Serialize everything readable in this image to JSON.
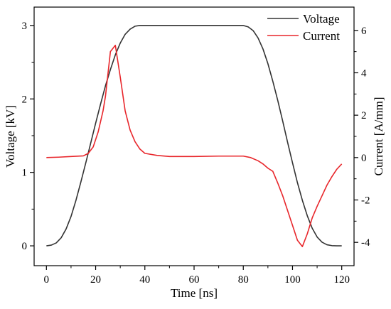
{
  "chart_data": {
    "type": "line",
    "xlabel": "Time [ns]",
    "ylabel_left": "Voltage [kV]",
    "ylabel_right": "Current [A/mm]",
    "xlim": [
      -5,
      125
    ],
    "ylim_left": [
      -0.27,
      3.25
    ],
    "ylim_right": [
      -5.1,
      7.1
    ],
    "x_ticks": [
      0,
      20,
      40,
      60,
      80,
      100,
      120
    ],
    "y_left_ticks": [
      0,
      1,
      2,
      3
    ],
    "y_right_ticks": [
      -4,
      -2,
      0,
      2,
      4,
      6
    ],
    "grid": false,
    "legend_position": "top-right",
    "series": [
      {
        "name": "Voltage",
        "axis": "left",
        "color": "#333333",
        "x": [
          0,
          2,
          4,
          6,
          8,
          10,
          12,
          14,
          16,
          18,
          20,
          22,
          24,
          26,
          28,
          30,
          32,
          34,
          36,
          38,
          40,
          45,
          50,
          60,
          70,
          80,
          82,
          84,
          86,
          88,
          90,
          92,
          94,
          96,
          98,
          100,
          102,
          104,
          106,
          108,
          110,
          112,
          114,
          116,
          118,
          120
        ],
        "y": [
          0.0,
          0.01,
          0.04,
          0.11,
          0.23,
          0.4,
          0.62,
          0.87,
          1.13,
          1.4,
          1.67,
          1.93,
          2.18,
          2.4,
          2.6,
          2.76,
          2.88,
          2.95,
          2.99,
          3.0,
          3.0,
          3.0,
          3.0,
          3.0,
          3.0,
          3.0,
          2.98,
          2.93,
          2.83,
          2.68,
          2.48,
          2.24,
          1.98,
          1.7,
          1.41,
          1.13,
          0.86,
          0.62,
          0.41,
          0.24,
          0.12,
          0.05,
          0.015,
          0.003,
          0.0,
          0.0
        ]
      },
      {
        "name": "Current",
        "axis": "right",
        "color": "#e8262b",
        "x": [
          0,
          5,
          10,
          15,
          17,
          19,
          21,
          23,
          24,
          26,
          28,
          30,
          32,
          34,
          36,
          38,
          40,
          45,
          50,
          60,
          70,
          80,
          83,
          86,
          88,
          90,
          92,
          94,
          96,
          98,
          100,
          102,
          104,
          106,
          108,
          110,
          112,
          114,
          116,
          118,
          120
        ],
        "y": [
          0.0,
          0.02,
          0.05,
          0.08,
          0.2,
          0.5,
          1.2,
          2.2,
          2.9,
          5.0,
          5.3,
          3.8,
          2.2,
          1.3,
          0.75,
          0.4,
          0.2,
          0.1,
          0.05,
          0.05,
          0.07,
          0.07,
          0.0,
          -0.15,
          -0.3,
          -0.5,
          -0.65,
          -1.2,
          -1.8,
          -2.5,
          -3.2,
          -3.9,
          -4.2,
          -3.6,
          -2.85,
          -2.3,
          -1.8,
          -1.3,
          -0.9,
          -0.55,
          -0.3
        ]
      }
    ]
  }
}
